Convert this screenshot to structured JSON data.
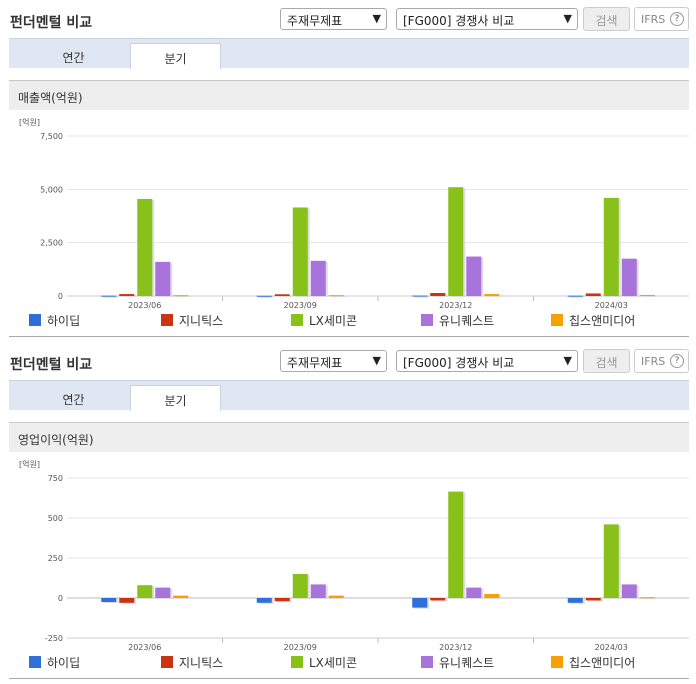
{
  "panels": [
    {
      "title": "펀더멘털 비교",
      "select1": "주재무제표",
      "select2": "[FG000] 경쟁사 비교",
      "search_label": "검색",
      "ifrs_label": "IFRS",
      "ifrs_help": "?",
      "tabs": [
        "연간",
        "분기"
      ],
      "active_tab": "분기",
      "section_label": "매출액(억원)"
    },
    {
      "title": "펀더멘털 비교",
      "select1": "주재무제표",
      "select2": "[FG000] 경쟁사 비교",
      "search_label": "검색",
      "ifrs_label": "IFRS",
      "ifrs_help": "?",
      "tabs": [
        "연간",
        "분기"
      ],
      "active_tab": "분기",
      "section_label": "영업이익(억원)"
    }
  ],
  "legend_colors": [
    "#2f6fd9",
    "#cc3311",
    "#88c11a",
    "#a874db",
    "#f5a100"
  ],
  "chart_data": [
    {
      "type": "bar",
      "title": "매출액(억원)",
      "unit": "[억원]",
      "categories": [
        "2023/06",
        "2023/09",
        "2023/12",
        "2024/03"
      ],
      "ylim": [
        0,
        7500
      ],
      "yticks": [
        "0",
        "2,500",
        "5,000",
        "7,500"
      ],
      "ytick_values": [
        0,
        2500,
        5000,
        7500
      ],
      "grid": true,
      "legend": "bottom",
      "series": [
        {
          "name": "하이딥",
          "values": [
            15,
            10,
            20,
            15
          ]
        },
        {
          "name": "지니틱스",
          "values": [
            90,
            80,
            140,
            120
          ]
        },
        {
          "name": "LX세미콘",
          "values": [
            4550,
            4150,
            5100,
            4600
          ]
        },
        {
          "name": "유니퀘스트",
          "values": [
            1600,
            1650,
            1850,
            1750
          ]
        },
        {
          "name": "칩스앤미디어",
          "values": [
            40,
            40,
            90,
            50
          ]
        }
      ]
    },
    {
      "type": "bar",
      "title": "영업이익(억원)",
      "unit": "[억원]",
      "categories": [
        "2023/06",
        "2023/09",
        "2023/12",
        "2024/03"
      ],
      "ylim": [
        -250,
        750
      ],
      "yticks": [
        "-250",
        "0",
        "250",
        "500",
        "750"
      ],
      "ytick_values": [
        -250,
        0,
        250,
        500,
        750
      ],
      "grid": true,
      "legend": "bottom",
      "series": [
        {
          "name": "하이딥",
          "values": [
            -25,
            -30,
            -60,
            -30
          ]
        },
        {
          "name": "지니틱스",
          "values": [
            -30,
            -20,
            -15,
            -15
          ]
        },
        {
          "name": "LX세미콘",
          "values": [
            80,
            150,
            665,
            460
          ]
        },
        {
          "name": "유니퀘스트",
          "values": [
            65,
            85,
            65,
            85
          ]
        },
        {
          "name": "칩스앤미디어",
          "values": [
            15,
            15,
            25,
            5
          ]
        }
      ]
    }
  ]
}
